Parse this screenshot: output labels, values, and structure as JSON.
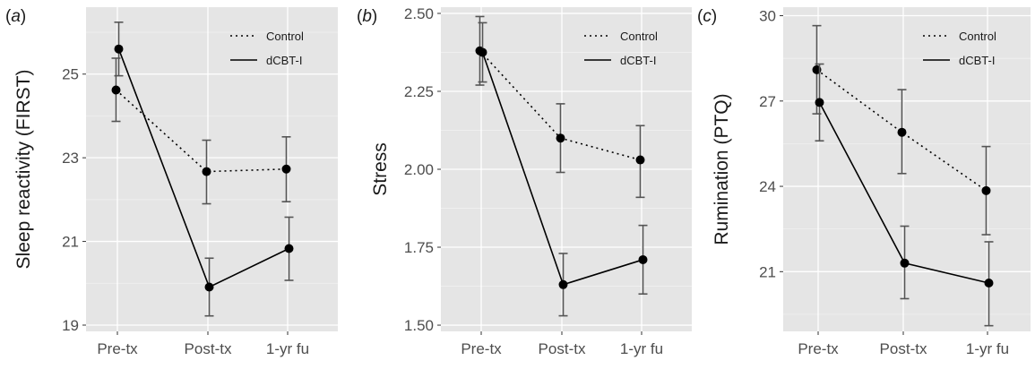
{
  "chart_data": [
    {
      "type": "line",
      "panel_label": "a",
      "ylabel": "Sleep reactivity (FIRST)",
      "categories": [
        "Pre-tx",
        "Post-tx",
        "1-yr fu"
      ],
      "ylim": [
        18.85,
        26.6
      ],
      "yticks": [
        19,
        21,
        23,
        25
      ],
      "ytick_labels": [
        "19",
        "21",
        "23",
        "25"
      ],
      "legend": {
        "position": "top-right",
        "entries": [
          "Control",
          "dCBT-I"
        ]
      },
      "series": [
        {
          "name": "Control",
          "linestyle": "dotted",
          "values": [
            24.62,
            22.67,
            22.73
          ],
          "lower": [
            23.87,
            21.9,
            21.95
          ],
          "upper": [
            25.38,
            23.42,
            23.5
          ]
        },
        {
          "name": "dCBT-I",
          "linestyle": "solid",
          "values": [
            25.6,
            19.91,
            20.83
          ],
          "lower": [
            24.96,
            19.22,
            20.07
          ],
          "upper": [
            26.24,
            20.6,
            21.58
          ]
        }
      ]
    },
    {
      "type": "line",
      "panel_label": "b",
      "ylabel": "Stress",
      "categories": [
        "Pre-tx",
        "Post-tx",
        "1-yr fu"
      ],
      "ylim": [
        1.48,
        2.52
      ],
      "yticks": [
        1.5,
        1.75,
        2.0,
        2.25,
        2.5
      ],
      "ytick_labels": [
        "1.50",
        "1.75",
        "2.00",
        "2.25",
        "2.50"
      ],
      "legend": {
        "position": "top-right",
        "entries": [
          "Control",
          "dCBT-I"
        ]
      },
      "series": [
        {
          "name": "Control",
          "linestyle": "dotted",
          "values": [
            2.38,
            2.1,
            2.03
          ],
          "lower": [
            2.27,
            1.99,
            1.91
          ],
          "upper": [
            2.49,
            2.21,
            2.14
          ]
        },
        {
          "name": "dCBT-I",
          "linestyle": "solid",
          "values": [
            2.375,
            1.63,
            1.71
          ],
          "lower": [
            2.28,
            1.53,
            1.6
          ],
          "upper": [
            2.47,
            1.73,
            1.82
          ]
        }
      ]
    },
    {
      "type": "line",
      "panel_label": "c",
      "ylabel": "Rumination (PTQ)",
      "categories": [
        "Pre-tx",
        "Post-tx",
        "1-yr fu"
      ],
      "ylim": [
        18.9,
        30.3
      ],
      "yticks": [
        21,
        24,
        27,
        30
      ],
      "ytick_labels": [
        "21",
        "24",
        "27",
        "30"
      ],
      "legend": {
        "position": "top-right",
        "entries": [
          "Control",
          "dCBT-I"
        ]
      },
      "series": [
        {
          "name": "Control",
          "linestyle": "dotted",
          "values": [
            28.1,
            25.9,
            23.85
          ],
          "lower": [
            26.55,
            24.45,
            22.3
          ],
          "upper": [
            29.65,
            27.4,
            25.4
          ]
        },
        {
          "name": "dCBT-I",
          "linestyle": "solid",
          "values": [
            26.95,
            21.3,
            20.6
          ],
          "lower": [
            25.6,
            20.05,
            19.1
          ],
          "upper": [
            28.3,
            22.6,
            22.05
          ]
        }
      ]
    }
  ]
}
